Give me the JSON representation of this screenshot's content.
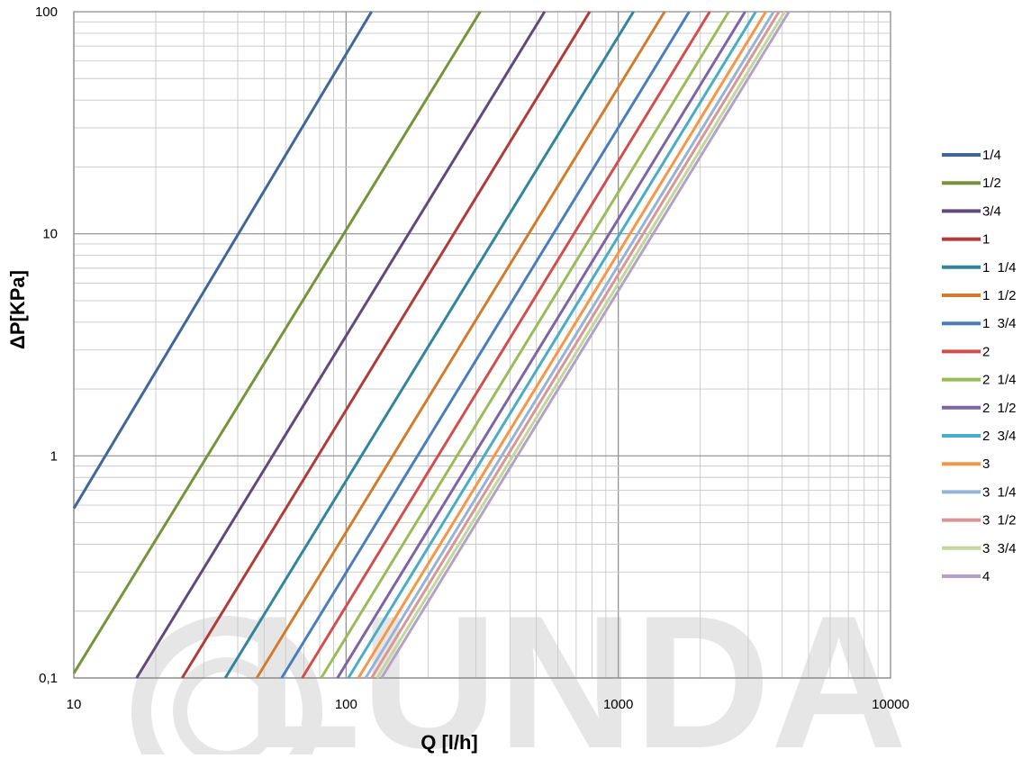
{
  "watermark": {
    "text": "LUNDA",
    "color": "#e6e6e6"
  },
  "chart_data": {
    "type": "line",
    "x_scale": "log",
    "y_scale": "log",
    "xlim": [
      10,
      10000
    ],
    "ylim": [
      0.1,
      100
    ],
    "x_ticks": [
      10,
      100,
      1000,
      10000
    ],
    "y_ticks": [
      0.1,
      1,
      10,
      100
    ],
    "x_tick_labels": [
      "10",
      "100",
      "1000",
      "10000"
    ],
    "y_tick_labels": [
      "0,1",
      "1",
      "10",
      "100"
    ],
    "xlabel": "Q [l/h]",
    "ylabel": "ΔP[KPa]",
    "grid": true,
    "legend_position": "right",
    "series": [
      {
        "name": "1/4",
        "color": "#3f6797",
        "x": [
          10,
          124
        ],
        "y": [
          0.58,
          100
        ]
      },
      {
        "name": "1/2",
        "color": "#77933c",
        "x": [
          10,
          311
        ],
        "y": [
          0.105,
          100
        ]
      },
      {
        "name": "3/4",
        "color": "#604a7b",
        "x": [
          17,
          536
        ],
        "y": [
          0.1,
          100
        ]
      },
      {
        "name": "1",
        "color": "#b03c3a",
        "x": [
          25,
          785
        ],
        "y": [
          0.1,
          100
        ]
      },
      {
        "name": "1  1/4",
        "color": "#31859c",
        "x": [
          36,
          1137
        ],
        "y": [
          0.1,
          100
        ]
      },
      {
        "name": "1  1/2",
        "color": "#d27b2c",
        "x": [
          47,
          1479
        ],
        "y": [
          0.1,
          100
        ]
      },
      {
        "name": "1  3/4",
        "color": "#4a7ebb",
        "x": [
          58,
          1822
        ],
        "y": [
          0.1,
          100
        ]
      },
      {
        "name": "2",
        "color": "#d24e4e",
        "x": [
          69,
          2167
        ],
        "y": [
          0.1,
          100
        ]
      },
      {
        "name": "2  1/4",
        "color": "#9bbb59",
        "x": [
          81,
          2545
        ],
        "y": [
          0.1,
          100
        ]
      },
      {
        "name": "2  1/2",
        "color": "#8064a2",
        "x": [
          93,
          2924
        ],
        "y": [
          0.1,
          100
        ]
      },
      {
        "name": "2  3/4",
        "color": "#4bacc6",
        "x": [
          102,
          3197
        ],
        "y": [
          0.1,
          100
        ]
      },
      {
        "name": "3",
        "color": "#f79646",
        "x": [
          111,
          3483
        ],
        "y": [
          0.1,
          100
        ]
      },
      {
        "name": "3  1/4",
        "color": "#95b3d7",
        "x": [
          118,
          3720
        ],
        "y": [
          0.1,
          100
        ]
      },
      {
        "name": "3  1/2",
        "color": "#d99694",
        "x": [
          124,
          3893
        ],
        "y": [
          0.1,
          100
        ]
      },
      {
        "name": "3  3/4",
        "color": "#c3d69b",
        "x": [
          130,
          4085
        ],
        "y": [
          0.1,
          100
        ]
      },
      {
        "name": "4",
        "color": "#b3a2c7",
        "x": [
          135,
          4236
        ],
        "y": [
          0.1,
          100
        ]
      }
    ]
  }
}
